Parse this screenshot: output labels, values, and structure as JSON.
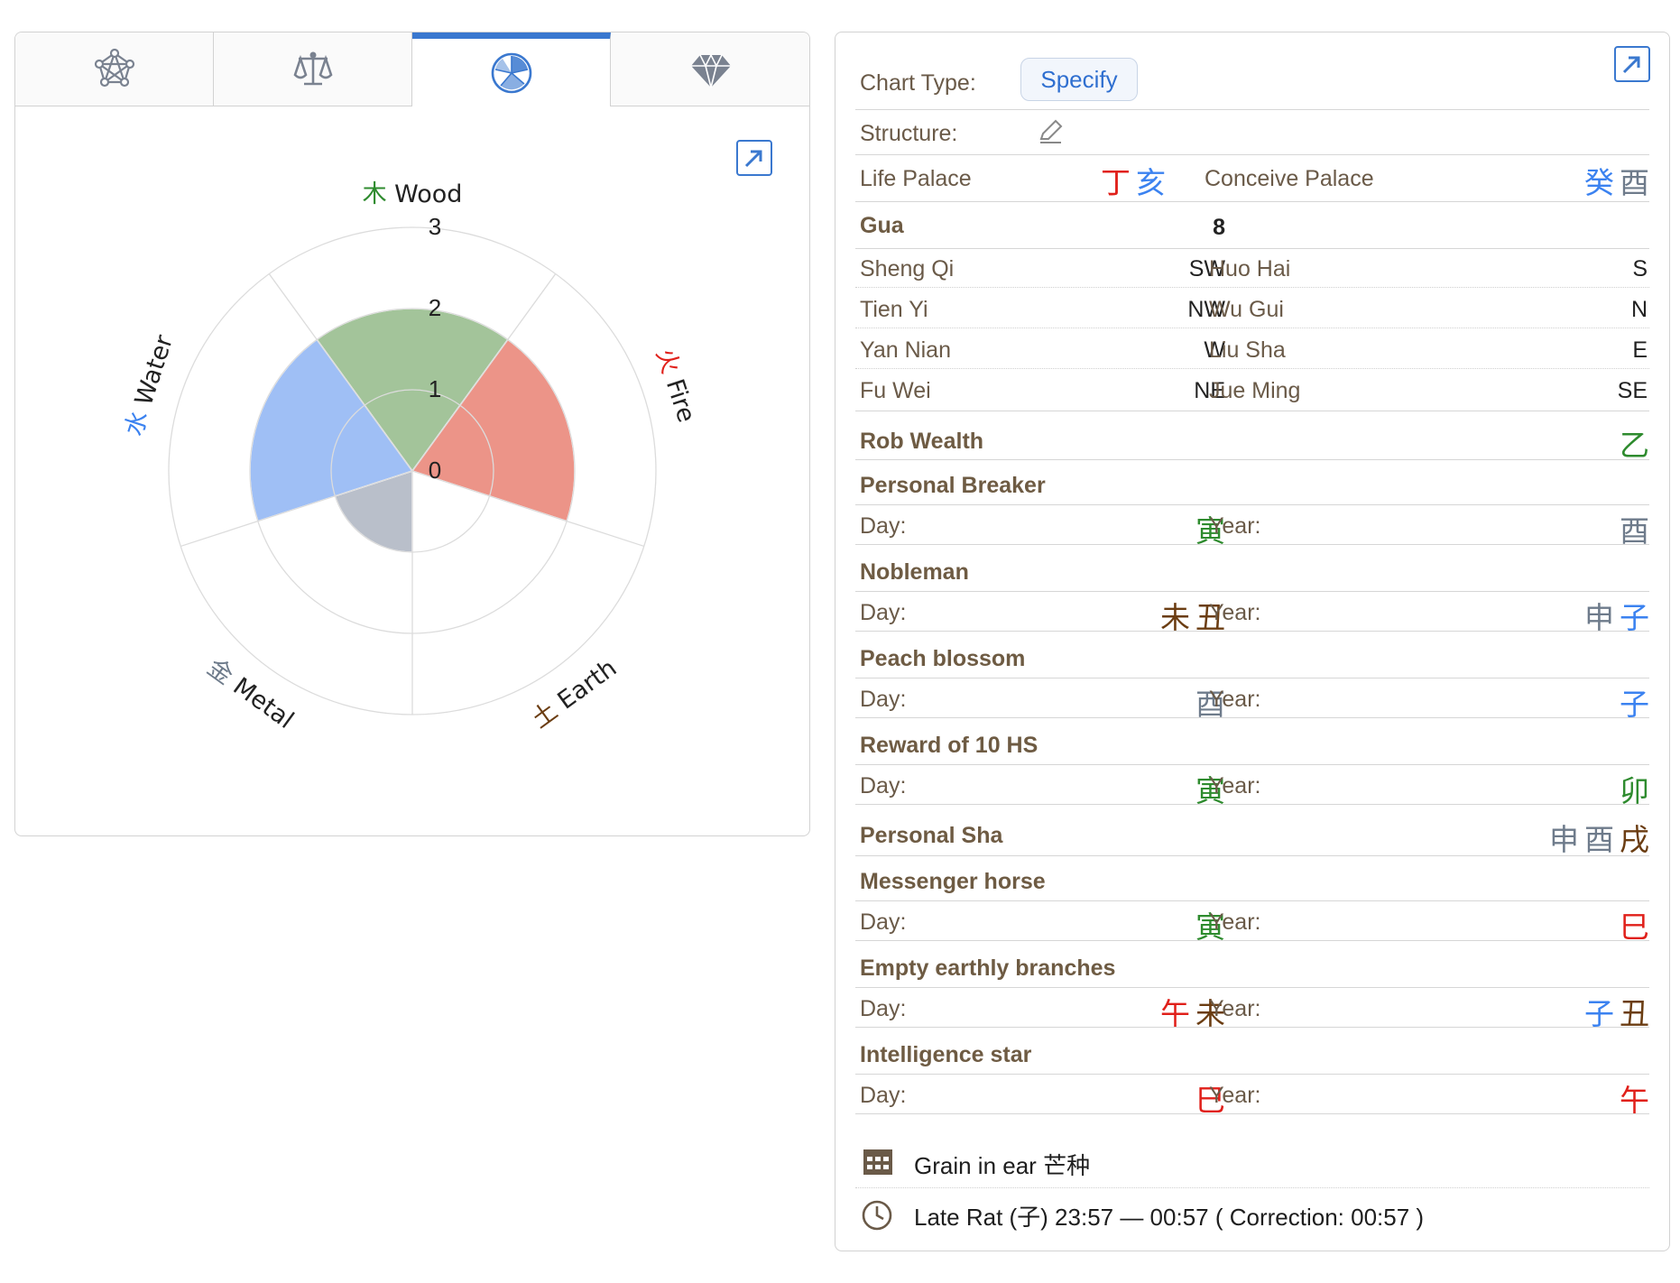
{
  "left_panel": {
    "tabs": [
      {
        "icon": "network-pentagon-icon"
      },
      {
        "icon": "balance-scale-icon"
      },
      {
        "icon": "pie-wheel-icon",
        "active": true
      },
      {
        "icon": "diamond-icon"
      }
    ],
    "expand_icon": "expand-arrow-icon"
  },
  "chart_data": {
    "type": "polar-area",
    "radial_ticks": [
      "0",
      "1",
      "2",
      "3"
    ],
    "rmax": 3,
    "categories": [
      {
        "cn": "木",
        "en": "Wood",
        "value": 2,
        "color": "#a3c49a",
        "label_color": "#2e8b2e"
      },
      {
        "cn": "火",
        "en": "Fire",
        "value": 2,
        "color": "#ec9488",
        "label_color": "#e0201a"
      },
      {
        "cn": "土",
        "en": "Earth",
        "value": 0,
        "color": "#e8d9c4",
        "label_color": "#6b3d12"
      },
      {
        "cn": "金",
        "en": "Metal",
        "value": 1,
        "color": "#b9bfca",
        "label_color": "#6e7b8b"
      },
      {
        "cn": "水",
        "en": "Water",
        "value": 2,
        "color": "#9fbff5",
        "label_color": "#3b82f0"
      }
    ]
  },
  "right_panel": {
    "chart_type_label": "Chart Type:",
    "specify_label": "Specify",
    "structure_label": "Structure:",
    "life_palace_label": "Life Palace",
    "life_palace_value": [
      {
        "t": "丁",
        "c": "red"
      },
      {
        "t": "亥",
        "c": "blue"
      }
    ],
    "conceive_palace_label": "Conceive Palace",
    "conceive_palace_value": [
      {
        "t": "癸",
        "c": "blue"
      },
      {
        "t": "酉",
        "c": "gray"
      }
    ],
    "gua_label": "Gua",
    "gua_value": "8",
    "directions": [
      {
        "left_label": "Sheng Qi",
        "left_value": "SW",
        "right_label": "Huo Hai",
        "right_value": "S"
      },
      {
        "left_label": "Tien Yi",
        "left_value": "NW",
        "right_label": "Wu Gui",
        "right_value": "N"
      },
      {
        "left_label": "Yan Nian",
        "left_value": "W",
        "right_label": "Liu Sha",
        "right_value": "E"
      },
      {
        "left_label": "Fu Wei",
        "left_value": "NE",
        "right_label": "Jue Ming",
        "right_value": "SE"
      }
    ],
    "rob_wealth_label": "Rob Wealth",
    "rob_wealth_value": [
      {
        "t": "乙",
        "c": "green"
      }
    ],
    "sections": [
      {
        "title": "Personal Breaker",
        "day_label": "Day:",
        "day": [
          {
            "t": "寅",
            "c": "green"
          }
        ],
        "year_label": "Year:",
        "year": [
          {
            "t": "酉",
            "c": "gray"
          }
        ]
      },
      {
        "title": "Nobleman",
        "day_label": "Day:",
        "day": [
          {
            "t": "未",
            "c": "brown"
          },
          {
            "t": "丑",
            "c": "brown"
          }
        ],
        "year_label": "Year:",
        "year": [
          {
            "t": "申",
            "c": "gray"
          },
          {
            "t": "子",
            "c": "blue"
          }
        ]
      },
      {
        "title": "Peach blossom",
        "day_label": "Day:",
        "day": [
          {
            "t": "酉",
            "c": "gray"
          }
        ],
        "year_label": "Year:",
        "year": [
          {
            "t": "子",
            "c": "blue"
          }
        ]
      },
      {
        "title": "Reward of 10 HS",
        "day_label": "Day:",
        "day": [
          {
            "t": "寅",
            "c": "green"
          }
        ],
        "year_label": "Year:",
        "year": [
          {
            "t": "卯",
            "c": "green"
          }
        ]
      }
    ],
    "personal_sha_label": "Personal Sha",
    "personal_sha_value": [
      {
        "t": "申",
        "c": "gray"
      },
      {
        "t": "酉",
        "c": "gray"
      },
      {
        "t": "戌",
        "c": "brown"
      }
    ],
    "sections2": [
      {
        "title": "Messenger horse",
        "day_label": "Day:",
        "day": [
          {
            "t": "寅",
            "c": "green"
          }
        ],
        "year_label": "Year:",
        "year": [
          {
            "t": "巳",
            "c": "red"
          }
        ]
      },
      {
        "title": "Empty earthly branches",
        "day_label": "Day:",
        "day": [
          {
            "t": "午",
            "c": "red"
          },
          {
            "t": "未",
            "c": "brown"
          }
        ],
        "year_label": "Year:",
        "year": [
          {
            "t": "子",
            "c": "blue"
          },
          {
            "t": "丑",
            "c": "brown"
          }
        ]
      },
      {
        "title": "Intelligence star",
        "day_label": "Day:",
        "day": [
          {
            "t": "巳",
            "c": "red"
          }
        ],
        "year_label": "Year:",
        "year": [
          {
            "t": "午",
            "c": "red"
          }
        ]
      }
    ],
    "solar_term_text": "Grain in ear 芒种",
    "hour_text": "Late Rat (子) 23:57 — 00:57 ( Correction: 00:57 )",
    "icons": {
      "calendar": "calendar-grid-icon",
      "clock": "clock-icon",
      "edit": "pencil-icon",
      "expand": "expand-arrow-icon"
    }
  }
}
